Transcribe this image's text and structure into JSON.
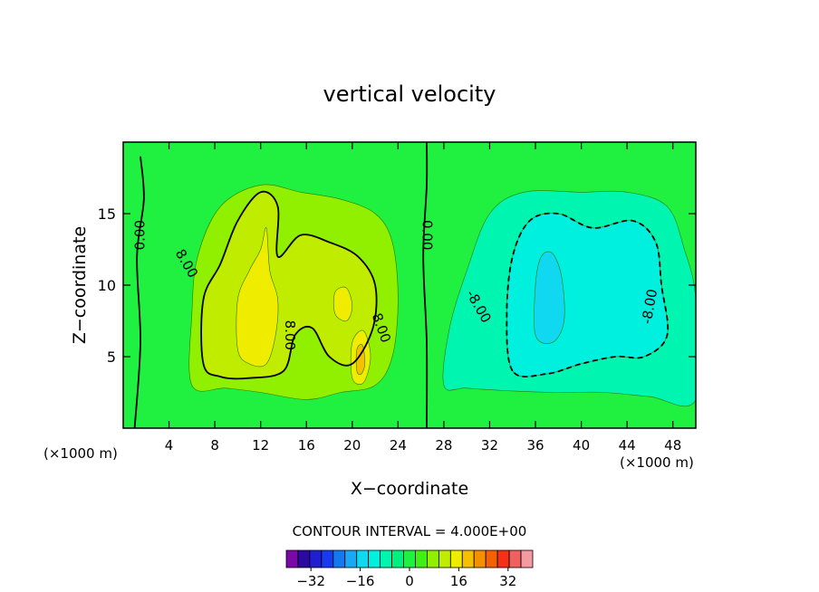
{
  "chart_data": {
    "type": "contour",
    "title": "vertical velocity",
    "xlabel": "X−coordinate",
    "ylabel": "Z−coordinate",
    "x_unit_label_left": "(×1000 m)",
    "x_unit_label_right": "(×1000 m)",
    "xlim": [
      0,
      50
    ],
    "ylim": [
      0,
      20
    ],
    "x_ticks": [
      4,
      8,
      12,
      16,
      20,
      24,
      28,
      32,
      36,
      40,
      44,
      48
    ],
    "y_ticks": [
      5,
      10,
      15
    ],
    "contour_interval_text": "CONTOUR INTERVAL = 4.000E+00",
    "contour_labels": [
      {
        "text": "0.00",
        "x": 1.5,
        "z": 13.5,
        "angle": -90
      },
      {
        "text": "0.00",
        "x": 26.5,
        "z": 13.5,
        "angle": 90
      },
      {
        "text": "8.00",
        "x": 5.5,
        "z": 11.5,
        "angle": 60
      },
      {
        "text": "8.00",
        "x": 14.5,
        "z": 6.5,
        "angle": 90
      },
      {
        "text": "8.00",
        "x": 22.5,
        "z": 7.0,
        "angle": 70
      },
      {
        "text": "-8.00",
        "x": 31.0,
        "z": 8.5,
        "angle": 60
      },
      {
        "text": "-8.00",
        "x": 46.0,
        "z": 8.5,
        "angle": -80
      }
    ],
    "colorbar": {
      "levels": [
        -40,
        -36,
        -32,
        -28,
        -24,
        -20,
        -16,
        -12,
        -8,
        -4,
        0,
        4,
        8,
        12,
        16,
        20,
        24,
        28,
        32,
        36,
        40
      ],
      "colors": [
        "#7a0aa8",
        "#2a0aa0",
        "#1f1fd0",
        "#1a3af0",
        "#1478f0",
        "#18a8f5",
        "#10d8f0",
        "#00f0e0",
        "#00f5b0",
        "#00f080",
        "#20f040",
        "#40f010",
        "#90f000",
        "#c0ec00",
        "#f0ec00",
        "#f5c000",
        "#f59000",
        "#f56000",
        "#f53018",
        "#f06060",
        "#f59aa0"
      ],
      "tick_labels": [
        "−32",
        "−16",
        "0",
        "16",
        "32"
      ],
      "tick_values": [
        -32,
        -16,
        0,
        16,
        32
      ]
    },
    "regions": [
      {
        "level": "4 to 8",
        "color": "#90f000",
        "points": [
          [
            6,
            3
          ],
          [
            6,
            8
          ],
          [
            6.5,
            12
          ],
          [
            8.5,
            15.5
          ],
          [
            12,
            17
          ],
          [
            15.5,
            16.5
          ],
          [
            19,
            16
          ],
          [
            22,
            15
          ],
          [
            23.5,
            13
          ],
          [
            24,
            9
          ],
          [
            23.5,
            5
          ],
          [
            22,
            3
          ],
          [
            19,
            2.5
          ],
          [
            16,
            2
          ],
          [
            12,
            2.5
          ],
          [
            9,
            2.8
          ]
        ]
      },
      {
        "level": "8 to 12",
        "color": "#c0ec00",
        "points": [
          [
            7,
            4.5
          ],
          [
            7,
            9
          ],
          [
            8.5,
            11.5
          ],
          [
            10,
            14.5
          ],
          [
            12,
            16.5
          ],
          [
            13.5,
            15.5
          ],
          [
            13.5,
            12
          ],
          [
            15.5,
            13.5
          ],
          [
            18,
            13
          ],
          [
            20.5,
            12
          ],
          [
            22,
            10
          ],
          [
            21.8,
            7
          ],
          [
            20,
            4.5
          ],
          [
            18,
            5
          ],
          [
            16.5,
            7
          ],
          [
            15,
            6.5
          ],
          [
            14,
            4
          ],
          [
            11,
            3.5
          ],
          [
            8.5,
            3.6
          ]
        ]
      },
      {
        "level": "12 to 16",
        "color": "#f0ec00",
        "points": [
          [
            10,
            5.5
          ],
          [
            10,
            9
          ],
          [
            11,
            11
          ],
          [
            12,
            12.5
          ],
          [
            12.5,
            14
          ],
          [
            12.8,
            11
          ],
          [
            13.5,
            9
          ],
          [
            13.3,
            6.5
          ],
          [
            12.5,
            4.5
          ],
          [
            11,
            4.5
          ]
        ]
      },
      {
        "level": "12 to 16",
        "color": "#f0ec00",
        "points": [
          [
            18.5,
            8
          ],
          [
            18.5,
            9.5
          ],
          [
            19.5,
            9.8
          ],
          [
            20,
            8.5
          ],
          [
            19.5,
            7.5
          ]
        ]
      },
      {
        "level": "12 to 16",
        "color": "#f0ec00",
        "points": [
          [
            20,
            3.5
          ],
          [
            20,
            6
          ],
          [
            21,
            6.8
          ],
          [
            21.6,
            5
          ],
          [
            21,
            3.2
          ]
        ]
      },
      {
        "level": "16 to 20",
        "color": "#f5c000",
        "points": [
          [
            20.4,
            4
          ],
          [
            20.4,
            5.5
          ],
          [
            20.9,
            5.8
          ],
          [
            21.1,
            4.5
          ],
          [
            20.8,
            3.8
          ]
        ]
      },
      {
        "level": "-4 to -8",
        "color": "#00f5b0",
        "points": [
          [
            28,
            3
          ],
          [
            28.5,
            7
          ],
          [
            30,
            11
          ],
          [
            32,
            15
          ],
          [
            35,
            16.5
          ],
          [
            40,
            16.5
          ],
          [
            44,
            16.5
          ],
          [
            47.5,
            15.5
          ],
          [
            49,
            12.5
          ],
          [
            50,
            9
          ],
          [
            50,
            2
          ],
          [
            46,
            2.2
          ],
          [
            42,
            2.5
          ],
          [
            38,
            2.5
          ],
          [
            34,
            2.6
          ],
          [
            30,
            2.8
          ]
        ]
      },
      {
        "level": "-8 to -12",
        "color": "#00f0e0",
        "points": [
          [
            34,
            4
          ],
          [
            33.5,
            8
          ],
          [
            34,
            12
          ],
          [
            35.5,
            14.5
          ],
          [
            38,
            15
          ],
          [
            41,
            14
          ],
          [
            44.5,
            14.5
          ],
          [
            46.5,
            13
          ],
          [
            47,
            10
          ],
          [
            47.5,
            6.5
          ],
          [
            45.5,
            5
          ],
          [
            43,
            5
          ],
          [
            40,
            4.5
          ],
          [
            37,
            3.8
          ]
        ]
      },
      {
        "level": "-12 to -16",
        "color": "#10d8f0",
        "points": [
          [
            36,
            6.5
          ],
          [
            36,
            10
          ],
          [
            36.5,
            12
          ],
          [
            37.5,
            12.2
          ],
          [
            38.3,
            10.5
          ],
          [
            38.5,
            7.5
          ],
          [
            37.5,
            6
          ]
        ]
      }
    ],
    "contour_lines": [
      {
        "value": 0,
        "style": "solid",
        "points": [
          [
            1,
            0
          ],
          [
            1.5,
            6
          ],
          [
            1.2,
            12
          ],
          [
            1.8,
            16
          ],
          [
            1.5,
            19
          ]
        ]
      },
      {
        "value": 0,
        "style": "solid",
        "points": [
          [
            26.5,
            0
          ],
          [
            26.5,
            6
          ],
          [
            26.2,
            12
          ],
          [
            26.5,
            17
          ],
          [
            26.5,
            20
          ]
        ]
      },
      {
        "value": 8,
        "style": "solid",
        "points": [
          [
            7,
            4.5
          ],
          [
            7,
            9
          ],
          [
            8.5,
            11.5
          ],
          [
            10,
            14.5
          ],
          [
            12,
            16.5
          ],
          [
            13.5,
            15.5
          ],
          [
            13.5,
            12
          ],
          [
            15.5,
            13.5
          ],
          [
            18,
            13
          ],
          [
            20.5,
            12
          ],
          [
            22,
            10
          ],
          [
            21.8,
            7
          ],
          [
            20,
            4.5
          ],
          [
            18,
            5
          ],
          [
            16.5,
            7
          ],
          [
            15,
            6.5
          ],
          [
            14,
            4
          ],
          [
            11,
            3.5
          ],
          [
            8.5,
            3.6
          ],
          [
            7,
            4.5
          ]
        ]
      },
      {
        "value": -8,
        "style": "dashed",
        "points": [
          [
            34,
            4
          ],
          [
            33.5,
            8
          ],
          [
            34,
            12
          ],
          [
            35.5,
            14.5
          ],
          [
            38,
            15
          ],
          [
            41,
            14
          ],
          [
            44.5,
            14.5
          ],
          [
            46.5,
            13
          ],
          [
            47,
            10
          ],
          [
            47.5,
            6.5
          ],
          [
            45.5,
            5
          ],
          [
            43,
            5
          ],
          [
            40,
            4.5
          ],
          [
            37,
            3.8
          ],
          [
            34,
            4
          ]
        ]
      }
    ]
  }
}
